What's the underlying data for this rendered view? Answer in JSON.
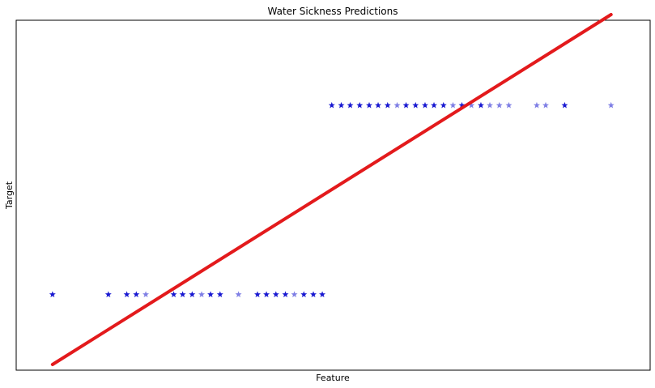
{
  "chart_data": {
    "type": "scatter",
    "title": "Water Sickness Predictions",
    "xlabel": "Feature",
    "ylabel": "Target",
    "xticks": false,
    "yticks": false,
    "grid": false,
    "xlim": [
      -0.65,
      10.7
    ],
    "ylim": [
      -0.4,
      1.45
    ],
    "series": [
      {
        "kind": "scatter",
        "marker": "star",
        "color": "#0000cc",
        "points": [
          {
            "x": 0.0,
            "y": 0
          },
          {
            "x": 1.0,
            "y": 0
          },
          {
            "x": 1.33,
            "y": 0
          },
          {
            "x": 1.5,
            "y": 0
          },
          {
            "x": 1.67,
            "y": 0,
            "faint": true
          },
          {
            "x": 2.17,
            "y": 0
          },
          {
            "x": 2.33,
            "y": 0
          },
          {
            "x": 2.5,
            "y": 0
          },
          {
            "x": 2.67,
            "y": 0,
            "faint": true
          },
          {
            "x": 2.83,
            "y": 0
          },
          {
            "x": 3.0,
            "y": 0
          },
          {
            "x": 3.33,
            "y": 0,
            "faint": true
          },
          {
            "x": 3.67,
            "y": 0
          },
          {
            "x": 3.83,
            "y": 0
          },
          {
            "x": 4.0,
            "y": 0
          },
          {
            "x": 4.17,
            "y": 0
          },
          {
            "x": 4.33,
            "y": 0,
            "faint": true
          },
          {
            "x": 4.5,
            "y": 0
          },
          {
            "x": 4.67,
            "y": 0
          },
          {
            "x": 4.83,
            "y": 0
          },
          {
            "x": 5.0,
            "y": 1
          },
          {
            "x": 5.17,
            "y": 1
          },
          {
            "x": 5.33,
            "y": 1
          },
          {
            "x": 5.5,
            "y": 1
          },
          {
            "x": 5.67,
            "y": 1
          },
          {
            "x": 5.83,
            "y": 1
          },
          {
            "x": 6.0,
            "y": 1
          },
          {
            "x": 6.17,
            "y": 1,
            "faint": true
          },
          {
            "x": 6.33,
            "y": 1
          },
          {
            "x": 6.5,
            "y": 1
          },
          {
            "x": 6.67,
            "y": 1
          },
          {
            "x": 6.83,
            "y": 1
          },
          {
            "x": 7.0,
            "y": 1
          },
          {
            "x": 7.17,
            "y": 1,
            "faint": true
          },
          {
            "x": 7.33,
            "y": 1
          },
          {
            "x": 7.5,
            "y": 1,
            "faint": true
          },
          {
            "x": 7.67,
            "y": 1
          },
          {
            "x": 7.83,
            "y": 1,
            "faint": true
          },
          {
            "x": 8.0,
            "y": 1,
            "faint": true
          },
          {
            "x": 8.17,
            "y": 1,
            "faint": true
          },
          {
            "x": 8.67,
            "y": 1,
            "faint": true
          },
          {
            "x": 8.83,
            "y": 1,
            "faint": true
          },
          {
            "x": 9.17,
            "y": 1
          },
          {
            "x": 10.0,
            "y": 1,
            "faint": true
          }
        ]
      },
      {
        "kind": "line",
        "color": "#e31a1c",
        "points": [
          {
            "x": 0.0,
            "y": -0.37
          },
          {
            "x": 10.0,
            "y": 1.48
          }
        ]
      }
    ]
  }
}
